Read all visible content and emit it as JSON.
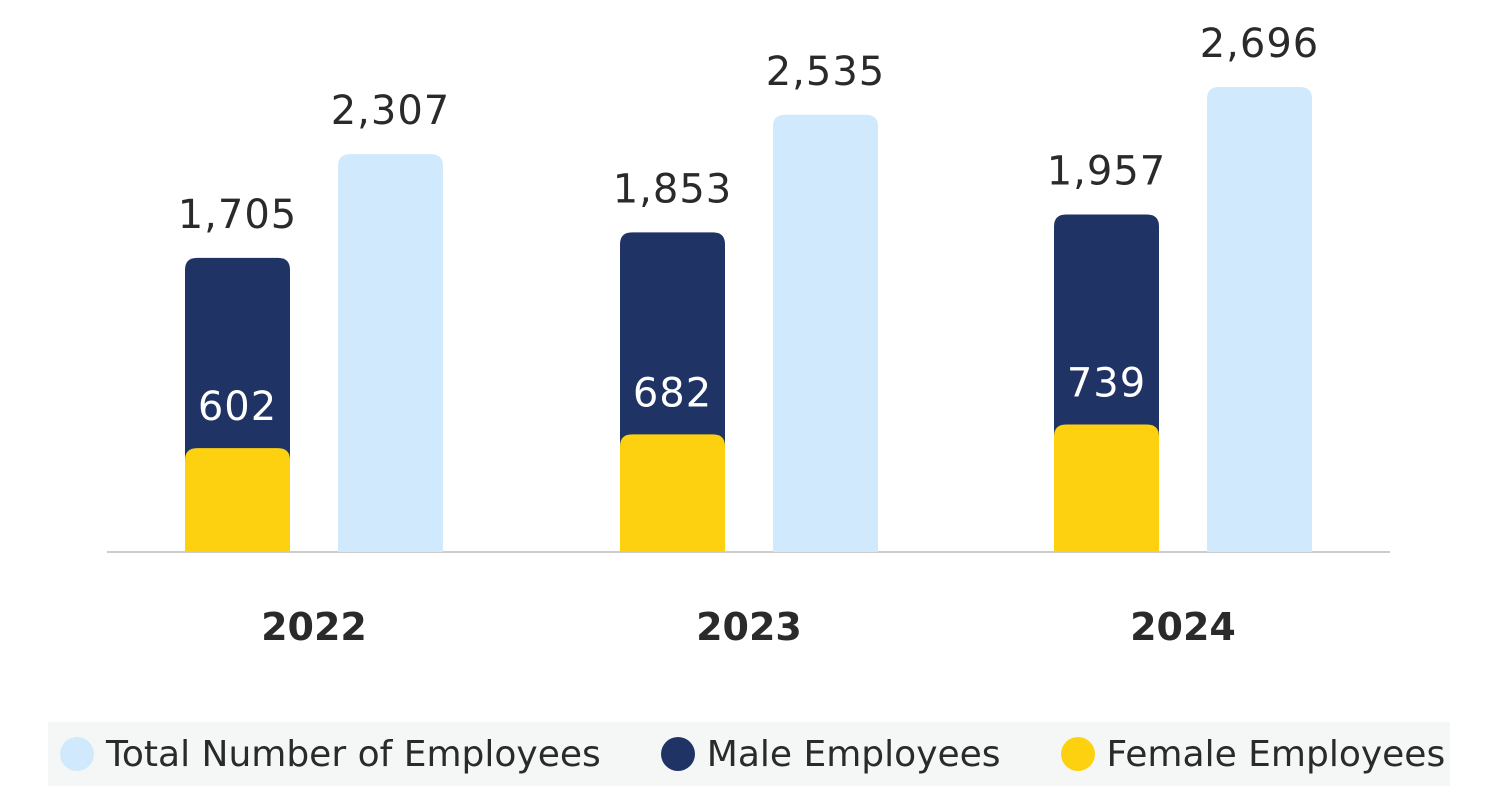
{
  "colors": {
    "total": "#d0e9fc",
    "male": "#1f3464",
    "female": "#fdd10f",
    "axis": "#cccccc",
    "text_dark": "#2a2a2a",
    "text_light": "#ffffff"
  },
  "legend": {
    "items": [
      {
        "key": "total",
        "label": "Total Number of Employees"
      },
      {
        "key": "male",
        "label": "Male Employees"
      },
      {
        "key": "female",
        "label": "Female Employees"
      }
    ]
  },
  "chart_data": {
    "type": "bar",
    "stacked_pair": true,
    "categories": [
      "2022",
      "2023",
      "2024"
    ],
    "series": [
      {
        "name": "Male Employees",
        "key": "male",
        "values": [
          1705,
          1853,
          1957
        ]
      },
      {
        "name": "Female Employees",
        "key": "female",
        "values": [
          602,
          682,
          739
        ]
      },
      {
        "name": "Total Number of Employees",
        "key": "total",
        "values": [
          2307,
          2535,
          2696
        ]
      }
    ],
    "value_labels": {
      "male": [
        "1,705",
        "1,853",
        "1,957"
      ],
      "female": [
        "602",
        "682",
        "739"
      ],
      "total": [
        "2,307",
        "2,535",
        "2,696"
      ]
    },
    "ylim": [
      0,
      2800
    ],
    "grid": false,
    "legend_position": "bottom"
  }
}
